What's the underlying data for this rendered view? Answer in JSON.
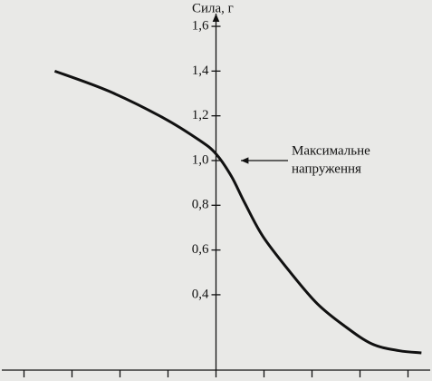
{
  "chart_data": {
    "type": "line",
    "title": "Сила, г",
    "annotation": [
      "Максимальне",
      "напруження"
    ],
    "x": [
      -3.36,
      -2.23,
      -1.09,
      -0.34,
      0,
      0.32,
      0.6,
      0.98,
      1.55,
      2.11,
      2.68,
      3.25,
      3.81,
      4.28
    ],
    "values": [
      1.4,
      1.31,
      1.19,
      1.09,
      1.03,
      0.93,
      0.81,
      0.66,
      0.5,
      0.36,
      0.26,
      0.18,
      0.15,
      0.14
    ],
    "color": "#111111",
    "xlim": [
      -4.5,
      4.5
    ],
    "xticks": [
      -4,
      -3,
      -2,
      -1,
      1,
      2,
      3,
      4
    ],
    "ylim": [
      0.063,
      1.657
    ],
    "yticks": [
      {
        "value": 0.4,
        "label": "0,4"
      },
      {
        "value": 0.6,
        "label": "0,6"
      },
      {
        "value": 0.8,
        "label": "0,8"
      },
      {
        "value": 1.0,
        "label": "1,0"
      },
      {
        "value": 1.2,
        "label": "1,2"
      },
      {
        "value": 1.4,
        "label": "1,4"
      },
      {
        "value": 1.6,
        "label": "1,6"
      }
    ]
  }
}
